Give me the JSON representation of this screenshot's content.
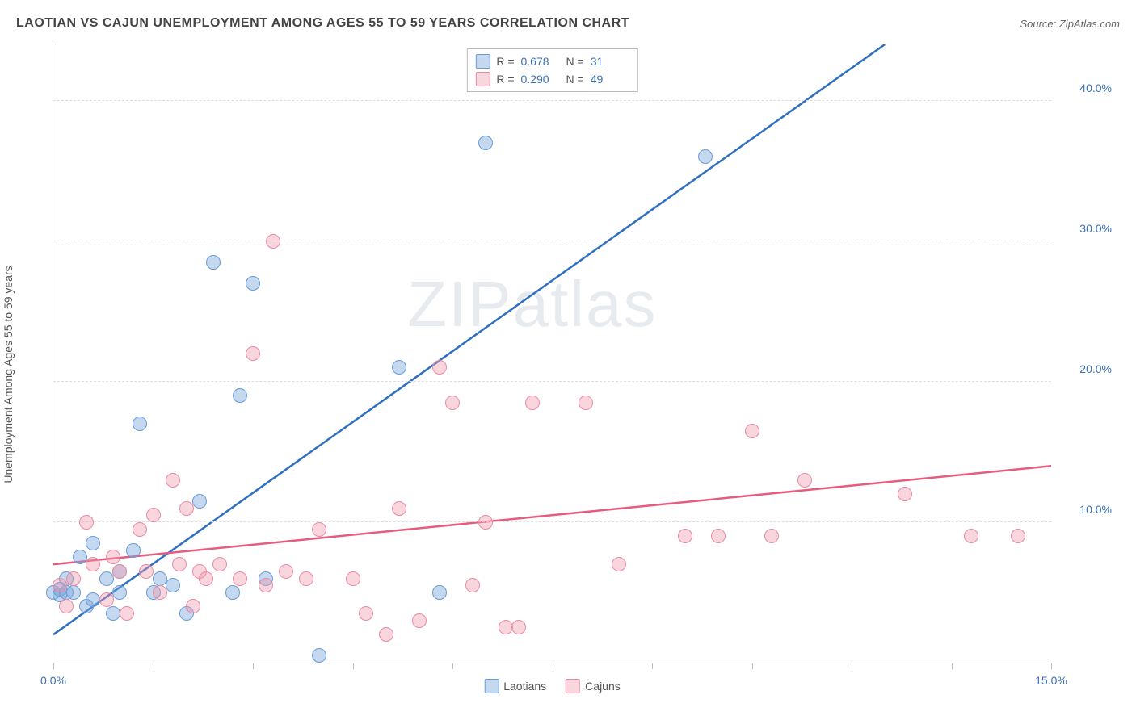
{
  "header": {
    "title": "LAOTIAN VS CAJUN UNEMPLOYMENT AMONG AGES 55 TO 59 YEARS CORRELATION CHART",
    "source": "Source: ZipAtlas.com"
  },
  "chart": {
    "type": "scatter",
    "y_axis_label": "Unemployment Among Ages 55 to 59 years",
    "watermark": "ZIPatlas",
    "background_color": "#ffffff",
    "grid_color": "#dddddd",
    "axis_color": "#bbbbbb",
    "tick_label_color": "#3b6fb6",
    "tick_label_fontsize": 14,
    "title_fontsize": 16,
    "title_color": "#444444",
    "xlim": [
      0,
      15
    ],
    "ylim": [
      0,
      44
    ],
    "x_ticks": [
      0,
      1.5,
      3,
      4.5,
      6,
      7.5,
      9,
      10.5,
      12,
      13.5,
      15
    ],
    "x_tick_labels": {
      "0": "0.0%",
      "15": "15.0%"
    },
    "y_gridlines": [
      10,
      20,
      30,
      40
    ],
    "y_tick_labels": {
      "10": "10.0%",
      "20": "20.0%",
      "30": "30.0%",
      "40": "40.0%"
    },
    "marker_radius": 9,
    "marker_border_width": 1.5,
    "series": [
      {
        "name": "Laotians",
        "fill_color": "rgba(124,169,221,0.45)",
        "border_color": "#6a9bd8",
        "line_color": "#2f6fc0",
        "line_width": 2.5,
        "r_value": "0.678",
        "n_value": "31",
        "regression": {
          "x1": 0,
          "y1": 2.0,
          "x2": 12.5,
          "y2": 44.0
        },
        "points": [
          [
            0.0,
            5.0
          ],
          [
            0.1,
            5.2
          ],
          [
            0.1,
            4.8
          ],
          [
            0.2,
            5.0
          ],
          [
            0.2,
            6.0
          ],
          [
            0.3,
            5.0
          ],
          [
            0.4,
            7.5
          ],
          [
            0.5,
            4.0
          ],
          [
            0.6,
            4.5
          ],
          [
            0.6,
            8.5
          ],
          [
            0.8,
            6.0
          ],
          [
            0.9,
            3.5
          ],
          [
            1.0,
            5.0
          ],
          [
            1.0,
            6.5
          ],
          [
            1.2,
            8.0
          ],
          [
            1.3,
            17.0
          ],
          [
            1.5,
            5.0
          ],
          [
            1.6,
            6.0
          ],
          [
            1.8,
            5.5
          ],
          [
            2.0,
            3.5
          ],
          [
            2.2,
            11.5
          ],
          [
            2.4,
            28.5
          ],
          [
            2.7,
            5.0
          ],
          [
            2.8,
            19.0
          ],
          [
            3.0,
            27.0
          ],
          [
            3.2,
            6.0
          ],
          [
            4.0,
            0.5
          ],
          [
            5.2,
            21.0
          ],
          [
            5.8,
            5.0
          ],
          [
            6.5,
            37.0
          ],
          [
            9.8,
            36.0
          ]
        ]
      },
      {
        "name": "Cajuns",
        "fill_color": "rgba(240,150,170,0.40)",
        "border_color": "#e88ba2",
        "line_color": "#e45d7e",
        "line_width": 2.5,
        "r_value": "0.290",
        "n_value": "49",
        "regression": {
          "x1": 0,
          "y1": 7.0,
          "x2": 15.0,
          "y2": 14.0
        },
        "points": [
          [
            0.1,
            5.5
          ],
          [
            0.2,
            4.0
          ],
          [
            0.3,
            6.0
          ],
          [
            0.5,
            10.0
          ],
          [
            0.6,
            7.0
          ],
          [
            0.8,
            4.5
          ],
          [
            0.9,
            7.5
          ],
          [
            1.0,
            6.5
          ],
          [
            1.1,
            3.5
          ],
          [
            1.3,
            9.5
          ],
          [
            1.4,
            6.5
          ],
          [
            1.5,
            10.5
          ],
          [
            1.6,
            5.0
          ],
          [
            1.8,
            13.0
          ],
          [
            1.9,
            7.0
          ],
          [
            2.0,
            11.0
          ],
          [
            2.1,
            4.0
          ],
          [
            2.2,
            6.5
          ],
          [
            2.3,
            6.0
          ],
          [
            2.5,
            7.0
          ],
          [
            2.8,
            6.0
          ],
          [
            3.0,
            22.0
          ],
          [
            3.2,
            5.5
          ],
          [
            3.3,
            30.0
          ],
          [
            3.5,
            6.5
          ],
          [
            3.8,
            6.0
          ],
          [
            4.0,
            9.5
          ],
          [
            4.5,
            6.0
          ],
          [
            4.7,
            3.5
          ],
          [
            5.0,
            2.0
          ],
          [
            5.2,
            11.0
          ],
          [
            5.5,
            3.0
          ],
          [
            5.8,
            21.0
          ],
          [
            6.0,
            18.5
          ],
          [
            6.3,
            5.5
          ],
          [
            6.5,
            10.0
          ],
          [
            6.8,
            2.5
          ],
          [
            7.0,
            2.5
          ],
          [
            7.2,
            18.5
          ],
          [
            8.0,
            18.5
          ],
          [
            8.5,
            7.0
          ],
          [
            9.5,
            9.0
          ],
          [
            10.0,
            9.0
          ],
          [
            10.5,
            16.5
          ],
          [
            10.8,
            9.0
          ],
          [
            11.3,
            13.0
          ],
          [
            12.8,
            12.0
          ],
          [
            13.8,
            9.0
          ],
          [
            14.5,
            9.0
          ]
        ]
      }
    ],
    "legend_bottom": [
      {
        "swatch_fill": "rgba(124,169,221,0.45)",
        "swatch_border": "#6a9bd8",
        "label": "Laotians"
      },
      {
        "swatch_fill": "rgba(240,150,170,0.40)",
        "swatch_border": "#e88ba2",
        "label": "Cajuns"
      }
    ]
  }
}
